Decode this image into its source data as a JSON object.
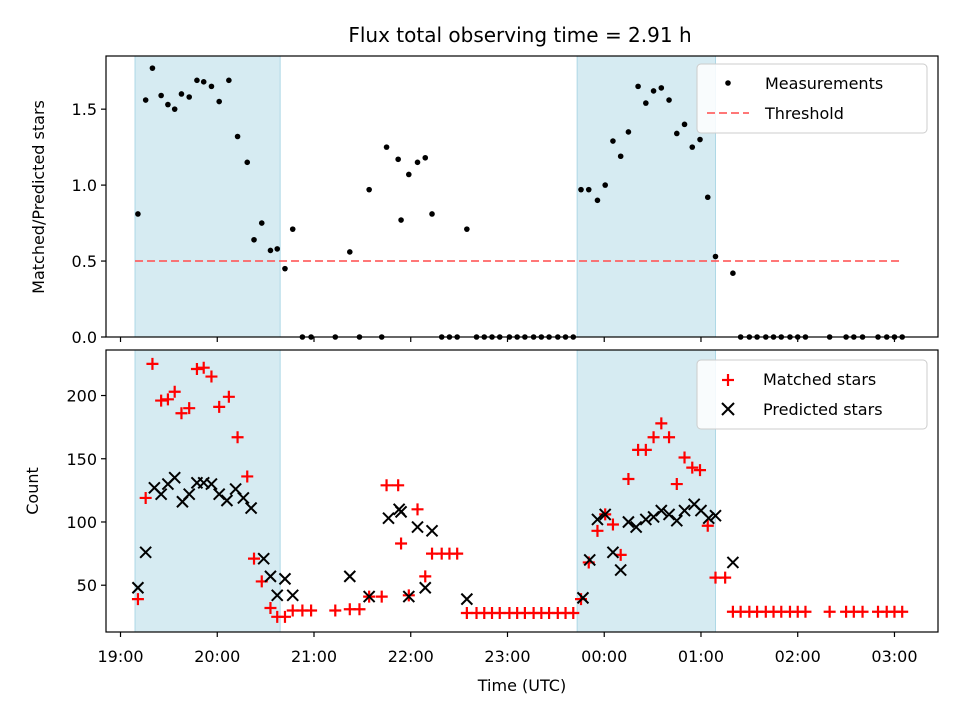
{
  "colors": {
    "shade": "#add8e6",
    "measurement": "#000000",
    "threshold": "#ff5555",
    "matched": "#ff0000",
    "predicted": "#000000"
  },
  "chart_data": [
    {
      "type": "scatter",
      "title": "Flux total observing time = 2.91 h",
      "xlabel": "",
      "ylabel": "Matched/Predicted stars",
      "xlim": [
        18.85,
        27.45
      ],
      "ylim": [
        0,
        1.85
      ],
      "yticks": [
        "0.0",
        "0.5",
        "1.0",
        "1.5"
      ],
      "shaded_regions": [
        [
          19.15,
          20.65
        ],
        [
          23.72,
          25.15
        ]
      ],
      "threshold": 0.5,
      "legend": {
        "position": "top-right",
        "entries": [
          "Measurements",
          "Threshold"
        ]
      },
      "series": [
        {
          "name": "Measurements",
          "points": [
            [
              19.18,
              0.81
            ],
            [
              19.26,
              1.56
            ],
            [
              19.33,
              1.77
            ],
            [
              19.42,
              1.59
            ],
            [
              19.49,
              1.53
            ],
            [
              19.56,
              1.5
            ],
            [
              19.63,
              1.6
            ],
            [
              19.71,
              1.58
            ],
            [
              19.79,
              1.69
            ],
            [
              19.86,
              1.68
            ],
            [
              19.94,
              1.65
            ],
            [
              20.02,
              1.55
            ],
            [
              20.12,
              1.69
            ],
            [
              20.21,
              1.32
            ],
            [
              20.31,
              1.15
            ],
            [
              20.38,
              0.64
            ],
            [
              20.46,
              0.75
            ],
            [
              20.55,
              0.57
            ],
            [
              20.62,
              0.58
            ],
            [
              20.7,
              0.45
            ],
            [
              20.78,
              0.71
            ],
            [
              20.88,
              0.0
            ],
            [
              20.97,
              0.0
            ],
            [
              21.22,
              0.0
            ],
            [
              21.37,
              0.56
            ],
            [
              21.47,
              0.0
            ],
            [
              21.57,
              0.97
            ],
            [
              21.7,
              0.0
            ],
            [
              21.75,
              1.25
            ],
            [
              21.87,
              1.17
            ],
            [
              21.9,
              0.77
            ],
            [
              21.98,
              1.07
            ],
            [
              22.07,
              1.15
            ],
            [
              22.15,
              1.18
            ],
            [
              22.22,
              0.81
            ],
            [
              22.32,
              0.0
            ],
            [
              22.4,
              0.0
            ],
            [
              22.48,
              0.0
            ],
            [
              22.58,
              0.71
            ],
            [
              22.68,
              0.0
            ],
            [
              22.76,
              0.0
            ],
            [
              22.84,
              0.0
            ],
            [
              22.92,
              0.0
            ],
            [
              23.02,
              0.0
            ],
            [
              23.1,
              0.0
            ],
            [
              23.18,
              0.0
            ],
            [
              23.27,
              0.0
            ],
            [
              23.35,
              0.0
            ],
            [
              23.43,
              0.0
            ],
            [
              23.52,
              0.0
            ],
            [
              23.6,
              0.0
            ],
            [
              23.68,
              0.0
            ],
            [
              23.76,
              0.97
            ],
            [
              23.84,
              0.97
            ],
            [
              23.93,
              0.9
            ],
            [
              24.01,
              1.0
            ],
            [
              24.09,
              1.29
            ],
            [
              24.17,
              1.19
            ],
            [
              24.25,
              1.35
            ],
            [
              24.35,
              1.65
            ],
            [
              24.43,
              1.54
            ],
            [
              24.51,
              1.62
            ],
            [
              24.59,
              1.64
            ],
            [
              24.67,
              1.56
            ],
            [
              24.75,
              1.34
            ],
            [
              24.83,
              1.4
            ],
            [
              24.91,
              1.25
            ],
            [
              24.99,
              1.3
            ],
            [
              25.07,
              0.92
            ],
            [
              25.15,
              0.53
            ],
            [
              25.33,
              0.42
            ],
            [
              25.41,
              0.0
            ],
            [
              25.5,
              0.0
            ],
            [
              25.58,
              0.0
            ],
            [
              25.67,
              0.0
            ],
            [
              25.75,
              0.0
            ],
            [
              25.83,
              0.0
            ],
            [
              25.92,
              0.0
            ],
            [
              26.0,
              0.0
            ],
            [
              26.08,
              0.0
            ],
            [
              26.33,
              0.0
            ],
            [
              26.5,
              0.0
            ],
            [
              26.58,
              0.0
            ],
            [
              26.67,
              0.0
            ],
            [
              26.83,
              0.0
            ],
            [
              26.92,
              0.0
            ],
            [
              27.0,
              0.0
            ],
            [
              27.08,
              0.0
            ]
          ]
        }
      ]
    },
    {
      "type": "scatter",
      "title": "",
      "xlabel": "Time (UTC)",
      "ylabel": "Count",
      "xlim": [
        18.85,
        27.45
      ],
      "ylim": [
        13,
        236
      ],
      "yticks": [
        "50",
        "100",
        "150",
        "200"
      ],
      "xticks": [
        "19:00",
        "20:00",
        "21:00",
        "22:00",
        "23:00",
        "00:00",
        "01:00",
        "02:00",
        "03:00"
      ],
      "shaded_regions": [
        [
          19.15,
          20.65
        ],
        [
          23.72,
          25.15
        ]
      ],
      "legend": {
        "position": "top-right",
        "entries": [
          "Matched stars",
          "Predicted stars"
        ]
      },
      "series": [
        {
          "name": "Matched stars",
          "points": [
            [
              19.18,
              39
            ],
            [
              19.26,
              119
            ],
            [
              19.33,
              225
            ],
            [
              19.42,
              196
            ],
            [
              19.49,
              197
            ],
            [
              19.56,
              203
            ],
            [
              19.63,
              186
            ],
            [
              19.71,
              190
            ],
            [
              19.79,
              221
            ],
            [
              19.86,
              222
            ],
            [
              19.94,
              215
            ],
            [
              20.02,
              191
            ],
            [
              20.12,
              199
            ],
            [
              20.21,
              167
            ],
            [
              20.31,
              136
            ],
            [
              20.38,
              71
            ],
            [
              20.46,
              53
            ],
            [
              20.55,
              32
            ],
            [
              20.62,
              25
            ],
            [
              20.7,
              25
            ],
            [
              20.78,
              30
            ],
            [
              20.88,
              30
            ],
            [
              20.97,
              30
            ],
            [
              21.22,
              30
            ],
            [
              21.37,
              31
            ],
            [
              21.47,
              31
            ],
            [
              21.57,
              41
            ],
            [
              21.7,
              41
            ],
            [
              21.75,
              129
            ],
            [
              21.87,
              129
            ],
            [
              21.9,
              83
            ],
            [
              21.98,
              42
            ],
            [
              22.07,
              110
            ],
            [
              22.15,
              57
            ],
            [
              22.22,
              75
            ],
            [
              22.32,
              75
            ],
            [
              22.4,
              75
            ],
            [
              22.48,
              75
            ],
            [
              22.58,
              28
            ],
            [
              22.68,
              28
            ],
            [
              22.76,
              28
            ],
            [
              22.84,
              28
            ],
            [
              22.92,
              28
            ],
            [
              23.02,
              28
            ],
            [
              23.1,
              28
            ],
            [
              23.18,
              28
            ],
            [
              23.27,
              28
            ],
            [
              23.35,
              28
            ],
            [
              23.43,
              28
            ],
            [
              23.52,
              28
            ],
            [
              23.6,
              28
            ],
            [
              23.68,
              28
            ],
            [
              23.76,
              39
            ],
            [
              23.84,
              68
            ],
            [
              23.93,
              93
            ],
            [
              24.01,
              106
            ],
            [
              24.09,
              98
            ],
            [
              24.17,
              74
            ],
            [
              24.25,
              134
            ],
            [
              24.35,
              157
            ],
            [
              24.43,
              157
            ],
            [
              24.51,
              167
            ],
            [
              24.59,
              178
            ],
            [
              24.67,
              167
            ],
            [
              24.75,
              130
            ],
            [
              24.83,
              151
            ],
            [
              24.91,
              143
            ],
            [
              24.99,
              141
            ],
            [
              25.07,
              97
            ],
            [
              25.15,
              56
            ],
            [
              25.25,
              56
            ],
            [
              25.33,
              29
            ],
            [
              25.41,
              29
            ],
            [
              25.5,
              29
            ],
            [
              25.58,
              29
            ],
            [
              25.67,
              29
            ],
            [
              25.75,
              29
            ],
            [
              25.83,
              29
            ],
            [
              25.92,
              29
            ],
            [
              26.0,
              29
            ],
            [
              26.08,
              29
            ],
            [
              26.33,
              29
            ],
            [
              26.5,
              29
            ],
            [
              26.58,
              29
            ],
            [
              26.67,
              29
            ],
            [
              26.83,
              29
            ],
            [
              26.92,
              29
            ],
            [
              27.0,
              29
            ],
            [
              27.08,
              29
            ]
          ]
        },
        {
          "name": "Predicted stars",
          "points": [
            [
              19.18,
              48
            ],
            [
              19.26,
              76
            ],
            [
              19.35,
              127
            ],
            [
              19.42,
              122
            ],
            [
              19.49,
              130
            ],
            [
              19.56,
              135
            ],
            [
              19.64,
              116
            ],
            [
              19.71,
              122
            ],
            [
              19.79,
              131
            ],
            [
              19.86,
              131
            ],
            [
              19.94,
              130
            ],
            [
              20.02,
              122
            ],
            [
              20.1,
              117
            ],
            [
              20.19,
              126
            ],
            [
              20.27,
              119
            ],
            [
              20.35,
              111
            ],
            [
              20.48,
              71
            ],
            [
              20.55,
              57
            ],
            [
              20.62,
              42
            ],
            [
              20.7,
              55
            ],
            [
              20.78,
              42
            ],
            [
              21.37,
              57
            ],
            [
              21.57,
              41
            ],
            [
              21.77,
              103
            ],
            [
              21.88,
              110
            ],
            [
              21.9,
              108
            ],
            [
              21.98,
              41
            ],
            [
              22.07,
              96
            ],
            [
              22.15,
              48
            ],
            [
              22.22,
              93
            ],
            [
              22.58,
              39
            ],
            [
              23.78,
              40
            ],
            [
              23.85,
              70
            ],
            [
              23.93,
              102
            ],
            [
              24.01,
              106
            ],
            [
              24.09,
              76
            ],
            [
              24.17,
              62
            ],
            [
              24.25,
              100
            ],
            [
              24.33,
              96
            ],
            [
              24.43,
              102
            ],
            [
              24.51,
              104
            ],
            [
              24.59,
              109
            ],
            [
              24.67,
              106
            ],
            [
              24.75,
              101
            ],
            [
              24.83,
              109
            ],
            [
              24.93,
              114
            ],
            [
              25.0,
              109
            ],
            [
              25.08,
              103
            ],
            [
              25.15,
              105
            ],
            [
              25.33,
              68
            ]
          ]
        }
      ]
    }
  ]
}
